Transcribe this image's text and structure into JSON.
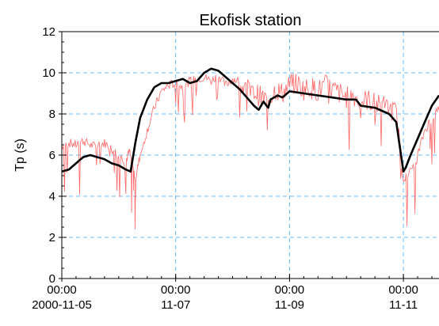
{
  "chart_data": {
    "type": "line",
    "title": "Ekofisk station",
    "xlabel": "",
    "ylabel": "Tp (s)",
    "ylim": [
      0,
      12
    ],
    "xlim": [
      "2000-11-05 00:00",
      "2000-11-11 15:00"
    ],
    "grid": true,
    "y_ticks": [
      0,
      2,
      4,
      6,
      8,
      10,
      12
    ],
    "x_ticks": [
      {
        "time": "2000-11-05 00:00",
        "line1": "00:00",
        "line2": "2000-11-05"
      },
      {
        "time": "2000-11-07 00:00",
        "line1": "00:00",
        "line2": "11-07"
      },
      {
        "time": "2000-11-09 00:00",
        "line1": "00:00",
        "line2": "11-09"
      },
      {
        "time": "2000-11-11 00:00",
        "line1": "00:00",
        "line2": "11-11"
      }
    ],
    "colors": {
      "observed": "#ff6666",
      "model": "#000000",
      "grid": "#66bbff"
    },
    "series": [
      {
        "name": "",
        "color": "#ff6666",
        "style": "thin-noisy",
        "x": [
          "2000-11-05 00:00",
          "2000-11-05 03:00",
          "2000-11-05 06:00",
          "2000-11-05 09:00",
          "2000-11-05 12:00",
          "2000-11-05 15:00",
          "2000-11-05 18:00",
          "2000-11-05 21:00",
          "2000-11-06 00:00",
          "2000-11-06 03:00",
          "2000-11-06 04:30",
          "2000-11-06 06:00",
          "2000-11-06 07:00",
          "2000-11-06 09:00",
          "2000-11-06 12:00",
          "2000-11-06 15:00",
          "2000-11-06 18:00",
          "2000-11-06 21:00",
          "2000-11-07 00:00",
          "2000-11-07 03:00",
          "2000-11-07 06:00",
          "2000-11-07 09:00",
          "2000-11-07 12:00",
          "2000-11-07 15:00",
          "2000-11-07 18:00",
          "2000-11-07 21:00",
          "2000-11-08 00:00",
          "2000-11-08 03:00",
          "2000-11-08 06:00",
          "2000-11-08 09:00",
          "2000-11-08 12:00",
          "2000-11-08 15:00",
          "2000-11-08 18:00",
          "2000-11-08 21:00",
          "2000-11-09 00:00",
          "2000-11-09 03:00",
          "2000-11-09 06:00",
          "2000-11-09 09:00",
          "2000-11-09 12:00",
          "2000-11-09 15:00",
          "2000-11-09 18:00",
          "2000-11-09 21:00",
          "2000-11-10 00:00",
          "2000-11-10 03:00",
          "2000-11-10 06:00",
          "2000-11-10 09:00",
          "2000-11-10 12:00",
          "2000-11-10 15:00",
          "2000-11-10 18:00",
          "2000-11-10 21:00",
          "2000-11-11 00:00",
          "2000-11-11 03:00",
          "2000-11-11 06:00",
          "2000-11-11 09:00",
          "2000-11-11 12:00",
          "2000-11-11 15:00"
        ],
        "values": [
          6.4,
          6.6,
          6.5,
          6.7,
          6.5,
          6.4,
          6.6,
          6.3,
          6.0,
          5.7,
          6.2,
          5.4,
          4.8,
          6.0,
          7.2,
          8.3,
          9.1,
          9.4,
          9.5,
          9.3,
          9.6,
          9.7,
          9.8,
          9.6,
          9.9,
          9.4,
          9.7,
          9.6,
          9.5,
          9.1,
          8.8,
          8.7,
          9.2,
          9.0,
          9.4,
          9.5,
          9.2,
          9.3,
          9.1,
          9.4,
          9.2,
          9.0,
          8.8,
          8.9,
          8.6,
          8.7,
          8.5,
          8.4,
          8.3,
          8.0,
          4.9,
          5.2,
          6.0,
          7.2,
          7.8,
          8.2
        ]
      },
      {
        "name": "",
        "color": "#000000",
        "style": "thick-smooth",
        "x": [
          "2000-11-05 00:00",
          "2000-11-05 03:00",
          "2000-11-05 06:00",
          "2000-11-05 09:00",
          "2000-11-05 12:00",
          "2000-11-05 15:00",
          "2000-11-05 18:00",
          "2000-11-05 21:00",
          "2000-11-06 00:00",
          "2000-11-06 03:00",
          "2000-11-06 05:00",
          "2000-11-06 07:00",
          "2000-11-06 09:00",
          "2000-11-06 12:00",
          "2000-11-06 15:00",
          "2000-11-06 18:00",
          "2000-11-06 21:00",
          "2000-11-07 00:00",
          "2000-11-07 03:00",
          "2000-11-07 06:00",
          "2000-11-07 09:00",
          "2000-11-07 12:00",
          "2000-11-07 15:00",
          "2000-11-07 18:00",
          "2000-11-07 21:00",
          "2000-11-08 00:00",
          "2000-11-08 03:00",
          "2000-11-08 06:00",
          "2000-11-08 09:00",
          "2000-11-08 11:00",
          "2000-11-08 13:00",
          "2000-11-08 15:00",
          "2000-11-08 16:00",
          "2000-11-08 19:00",
          "2000-11-08 21:00",
          "2000-11-09 00:00",
          "2000-11-09 06:00",
          "2000-11-09 12:00",
          "2000-11-09 18:00",
          "2000-11-10 00:00",
          "2000-11-10 04:00",
          "2000-11-10 06:00",
          "2000-11-10 12:00",
          "2000-11-10 18:00",
          "2000-11-10 21:00",
          "2000-11-11 00:00",
          "2000-11-11 01:00",
          "2000-11-11 03:00",
          "2000-11-11 06:00",
          "2000-11-11 09:00",
          "2000-11-11 12:00",
          "2000-11-11 15:00"
        ],
        "values": [
          5.2,
          5.3,
          5.6,
          5.9,
          6.0,
          5.9,
          5.8,
          5.6,
          5.5,
          5.3,
          5.2,
          6.6,
          7.8,
          8.7,
          9.3,
          9.5,
          9.5,
          9.6,
          9.7,
          9.5,
          9.6,
          10.0,
          10.2,
          10.1,
          9.8,
          9.5,
          9.2,
          8.8,
          8.4,
          8.2,
          8.6,
          8.3,
          8.7,
          8.9,
          8.8,
          9.1,
          9.0,
          8.9,
          8.8,
          8.7,
          8.7,
          8.4,
          8.3,
          8.0,
          7.6,
          5.2,
          5.4,
          6.0,
          6.8,
          7.6,
          8.4,
          8.9
        ]
      }
    ]
  }
}
